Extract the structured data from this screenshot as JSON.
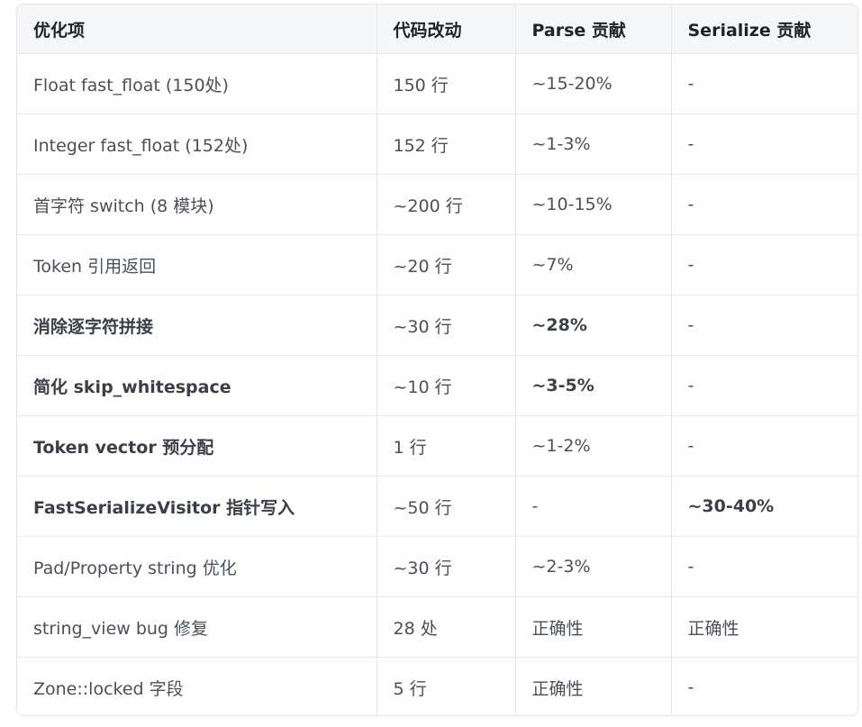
{
  "table": {
    "headers": [
      "优化项",
      "代码改动",
      "Parse 贡献",
      "Serialize 贡献"
    ],
    "rows": [
      {
        "item": "Float fast_float (150处)",
        "change": "150 行",
        "parse": "~15-20%",
        "serialize": "-",
        "bold_item": false,
        "bold_parse": false,
        "bold_serialize": false
      },
      {
        "item": "Integer fast_float (152处)",
        "change": "152 行",
        "parse": "~1-3%",
        "serialize": "-",
        "bold_item": false,
        "bold_parse": false,
        "bold_serialize": false
      },
      {
        "item": "首字符 switch (8 模块)",
        "change": "~200 行",
        "parse": "~10-15%",
        "serialize": "-",
        "bold_item": false,
        "bold_parse": false,
        "bold_serialize": false
      },
      {
        "item": "Token 引用返回",
        "change": "~20 行",
        "parse": "~7%",
        "serialize": "-",
        "bold_item": false,
        "bold_parse": false,
        "bold_serialize": false
      },
      {
        "item": "消除逐字符拼接",
        "change": "~30 行",
        "parse": "~28%",
        "serialize": "-",
        "bold_item": true,
        "bold_parse": true,
        "bold_serialize": false
      },
      {
        "item": "简化 skip_whitespace",
        "change": "~10 行",
        "parse": "~3-5%",
        "serialize": "-",
        "bold_item": true,
        "bold_parse": true,
        "bold_serialize": false
      },
      {
        "item": "Token vector 预分配",
        "change": "1 行",
        "parse": "~1-2%",
        "serialize": "-",
        "bold_item": true,
        "bold_parse": false,
        "bold_serialize": false
      },
      {
        "item": "FastSerializeVisitor 指针写入",
        "change": "~50 行",
        "parse": "-",
        "serialize": "~30-40%",
        "bold_item": true,
        "bold_parse": false,
        "bold_serialize": true
      },
      {
        "item": "Pad/Property string 优化",
        "change": "~30 行",
        "parse": "~2-3%",
        "serialize": "-",
        "bold_item": false,
        "bold_parse": false,
        "bold_serialize": false
      },
      {
        "item": "string_view bug 修复",
        "change": "28 处",
        "parse": "正确性",
        "serialize": "正确性",
        "bold_item": false,
        "bold_parse": false,
        "bold_serialize": false
      },
      {
        "item": "Zone::locked 字段",
        "change": "5 行",
        "parse": "正确性",
        "serialize": "-",
        "bold_item": false,
        "bold_parse": false,
        "bold_serialize": false
      }
    ]
  }
}
